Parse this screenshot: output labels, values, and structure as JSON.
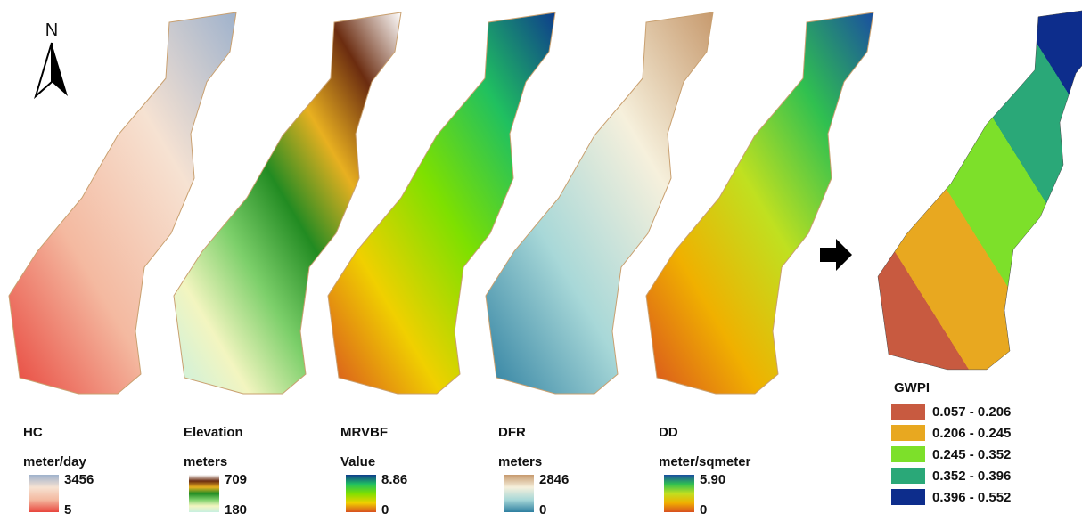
{
  "north_label": "N",
  "panels": [
    {
      "title": "HC",
      "unit": "meter/day",
      "max": "3456",
      "min": "5",
      "colors": [
        "#e8453c",
        "#f4b9a0",
        "#f6e2d2",
        "#9fb2cc"
      ]
    },
    {
      "title": "Elevation",
      "unit": "meters",
      "max": "709",
      "min": "180",
      "colors": [
        "#c8f0e0",
        "#f3f5c0",
        "#7ccf6a",
        "#228b22",
        "#e8b020",
        "#6b2c10",
        "#ffffff"
      ]
    },
    {
      "title": "MRVBF",
      "unit": "Value",
      "max": "8.86",
      "min": "0",
      "colors": [
        "#d85020",
        "#f0d000",
        "#7ee000",
        "#20c060",
        "#0e3d8c"
      ]
    },
    {
      "title": "DFR",
      "unit": "meters",
      "max": "2846",
      "min": "0",
      "colors": [
        "#2e7fa0",
        "#a8d8d8",
        "#f6f0dc",
        "#c79a6e"
      ]
    },
    {
      "title": "DD",
      "unit": "meter/sqmeter",
      "max": "5.90",
      "min": "0",
      "colors": [
        "#d85020",
        "#f0b000",
        "#c0e020",
        "#30c050",
        "#1a4fa0"
      ]
    }
  ],
  "result": {
    "title": "GWPI",
    "classes": [
      {
        "label": "0.057 - 0.206",
        "color": "#c85a40"
      },
      {
        "label": "0.206 - 0.245",
        "color": "#e8a820"
      },
      {
        "label": "0.245 - 0.352",
        "color": "#7de02a"
      },
      {
        "label": "0.352 - 0.396",
        "color": "#2aa878"
      },
      {
        "label": "0.396 - 0.552",
        "color": "#0d2d8c"
      }
    ]
  }
}
